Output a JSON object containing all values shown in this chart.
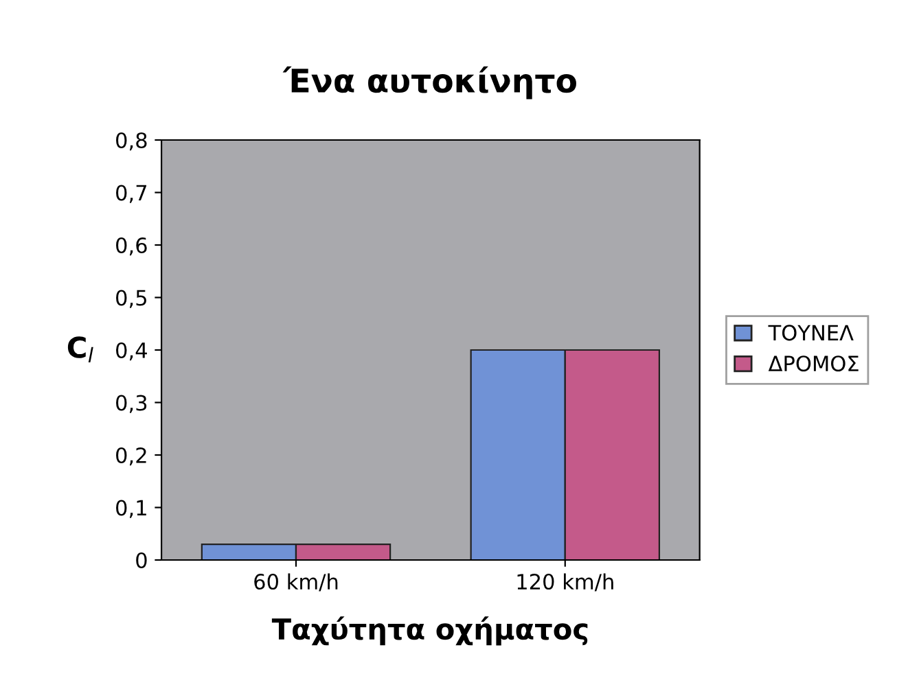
{
  "chart_data": {
    "type": "bar",
    "title": "Ένα αυτοκίνητο",
    "xlabel": "Ταχύτητα οχήματος",
    "ylabel": "C$_{l}$",
    "categories": [
      "60 km/h",
      "120 km/h"
    ],
    "series": [
      {
        "name": "ΤΟΥΝΕΛ",
        "color": "#7092d6",
        "values": [
          0.03,
          0.4
        ]
      },
      {
        "name": "ΔΡΟΜΟΣ",
        "color": "#c45a8a",
        "values": [
          0.03,
          0.4
        ]
      }
    ],
    "ylim": [
      0,
      0.8
    ],
    "yticks": [
      0,
      {
        "value": 0.1,
        "label": "0,1"
      },
      {
        "value": 0.2,
        "label": "0,2"
      },
      {
        "value": 0.3,
        "label": "0,3"
      },
      {
        "value": 0.4,
        "label": "0,4"
      },
      {
        "value": 0.5,
        "label": "0,5"
      },
      {
        "value": 0.6,
        "label": "0,6"
      },
      {
        "value": 0.7,
        "label": "0,7"
      },
      {
        "value": 0.8,
        "label": "0,8"
      }
    ],
    "grid": false,
    "legend": "right"
  }
}
